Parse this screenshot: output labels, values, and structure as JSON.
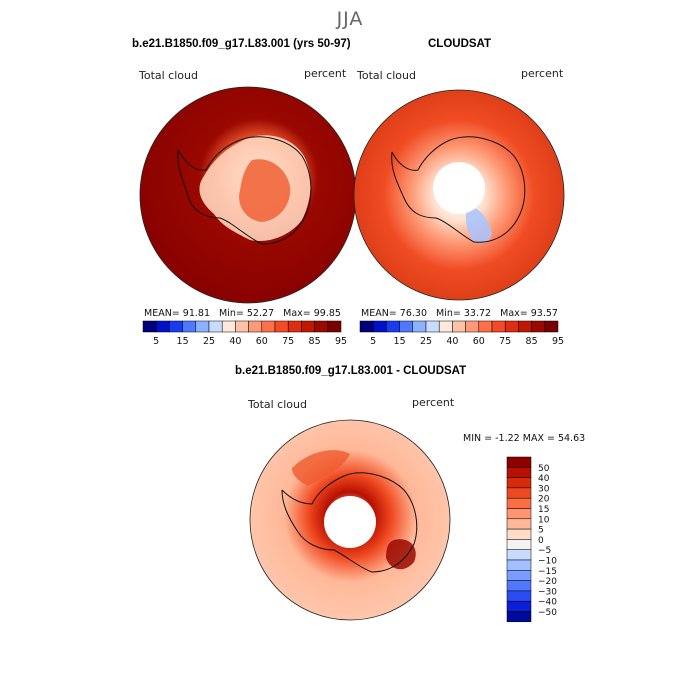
{
  "season": "JJA",
  "maps": [
    {
      "title": "b.e21.B1850.f09_g17.L83.001 (yrs 50-97)",
      "variable": "Total cloud",
      "units": "percent",
      "stats": {
        "mean_label": "MEAN=",
        "mean": "91.81",
        "min_label": "Min=",
        "min": "52.27",
        "max_label": "Max=",
        "max": "99.85"
      }
    },
    {
      "title": "CLOUDSAT",
      "variable": "Total cloud",
      "units": "percent",
      "stats": {
        "mean_label": "MEAN=",
        "mean": "76.30",
        "min_label": "Min=",
        "min": "33.72",
        "max_label": "Max=",
        "max": "93.57"
      }
    }
  ],
  "colorbar_abs": {
    "labels": [
      "5",
      "15",
      "25",
      "40",
      "60",
      "75",
      "85",
      "95"
    ],
    "colors": [
      "#00007a",
      "#0010c8",
      "#1a3cf0",
      "#4e78ff",
      "#8cb2ff",
      "#c8dcff",
      "#ffe8dc",
      "#ffc2a6",
      "#ff9a78",
      "#ff7048",
      "#f44a26",
      "#e02c10",
      "#c01800",
      "#9a0800",
      "#780000"
    ]
  },
  "diff_map": {
    "title": "b.e21.B1850.f09_g17.L83.001 - CLOUDSAT",
    "variable": "Total cloud",
    "units": "percent",
    "stats": {
      "min_label": "MIN =",
      "min": "-1.22",
      "max_label": "MAX =",
      "max": "54.63"
    }
  },
  "colorbar_diff": {
    "labels": [
      "50",
      "40",
      "30",
      "20",
      "15",
      "10",
      "5",
      "0",
      "−5",
      "−10",
      "−15",
      "−20",
      "−30",
      "−40",
      "−50"
    ],
    "colors": [
      "#8c0000",
      "#b81000",
      "#d62a0a",
      "#ee4a22",
      "#fa6e44",
      "#ff9470",
      "#ffb898",
      "#ffdcc8",
      "#f4f2f2",
      "#c8daff",
      "#a2c0ff",
      "#7a9cff",
      "#5078ff",
      "#2a4cf4",
      "#0c1ed8",
      "#000a9a"
    ]
  }
}
